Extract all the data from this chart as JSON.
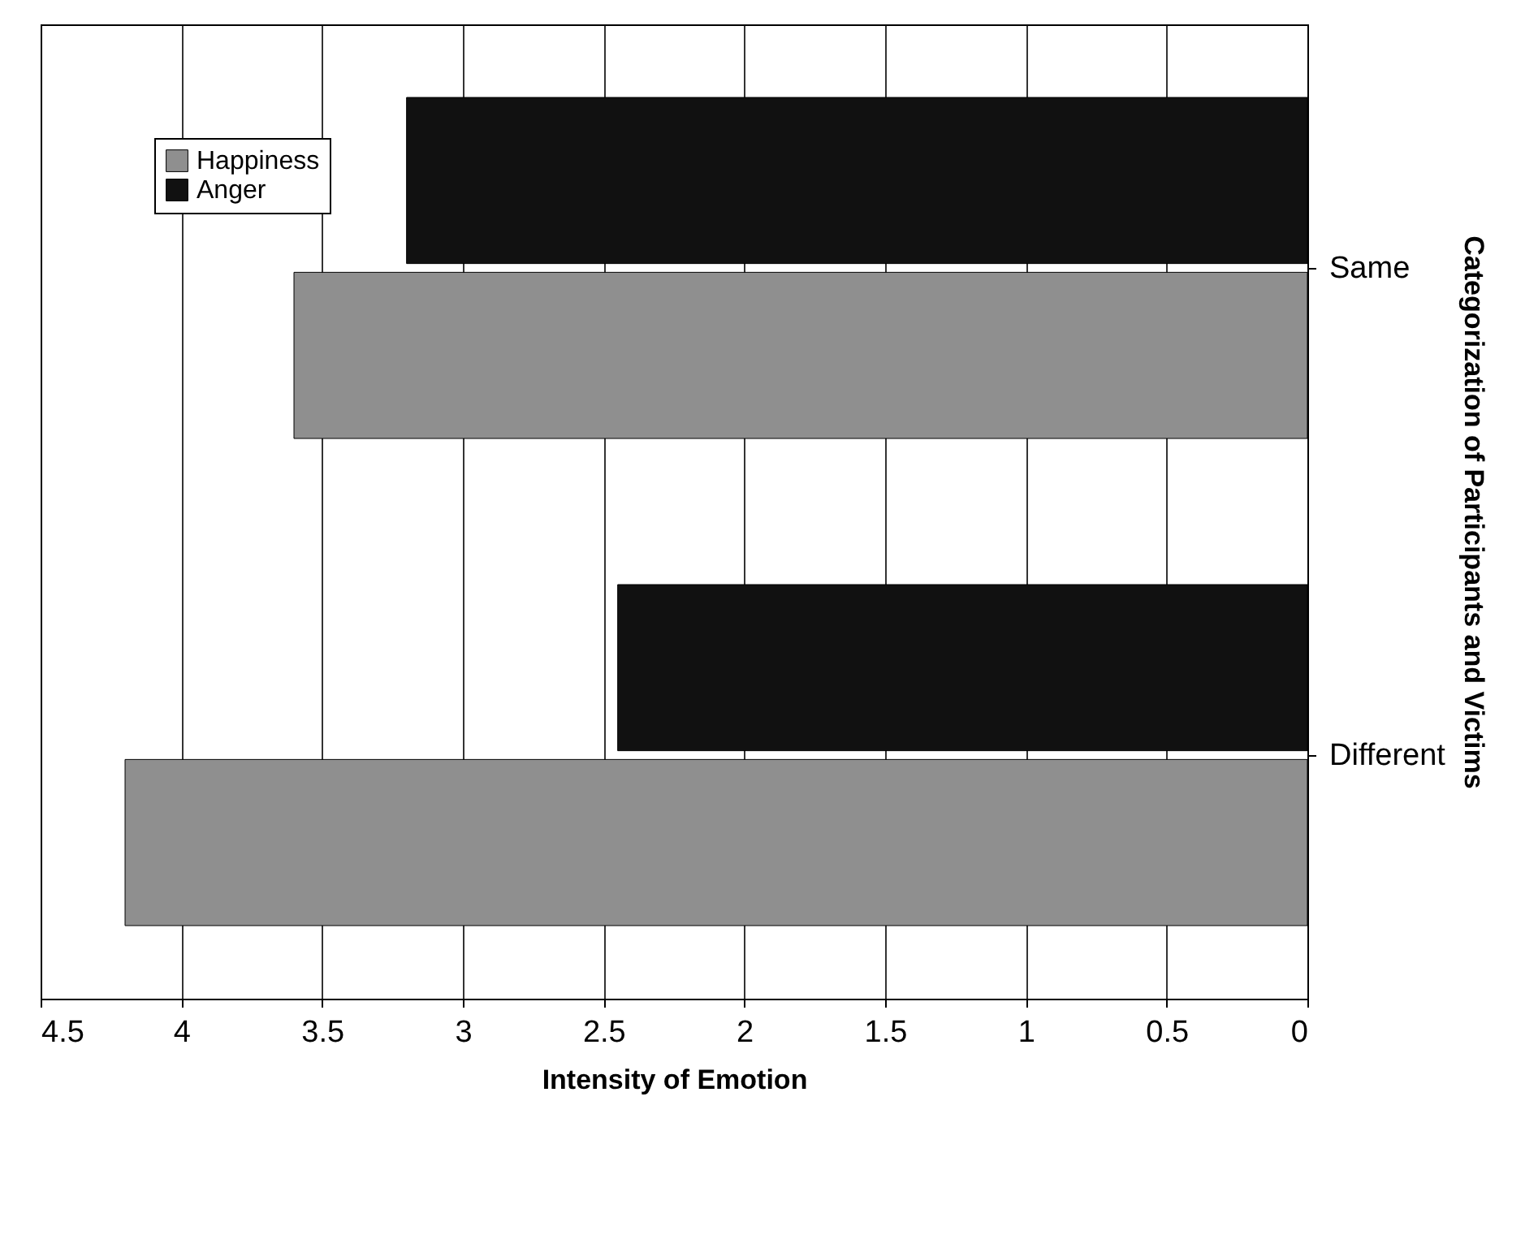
{
  "chart_data": {
    "type": "bar",
    "orientation": "horizontal",
    "xlabel": "Intensity of Emotion",
    "ylabel": "Categorization of Participants and Victims",
    "categories": [
      "Same",
      "Different"
    ],
    "series": [
      {
        "name": "Happiness",
        "color": "#8f8f8f",
        "values": [
          3.6,
          4.2
        ]
      },
      {
        "name": "Anger",
        "color": "#111111",
        "values": [
          3.2,
          2.45
        ]
      }
    ],
    "xlim": [
      4.5,
      0
    ],
    "xticks": [
      0,
      0.5,
      1,
      1.5,
      2,
      2.5,
      3,
      3.5,
      4,
      4.5
    ],
    "grid": "x",
    "legend": "top left"
  }
}
